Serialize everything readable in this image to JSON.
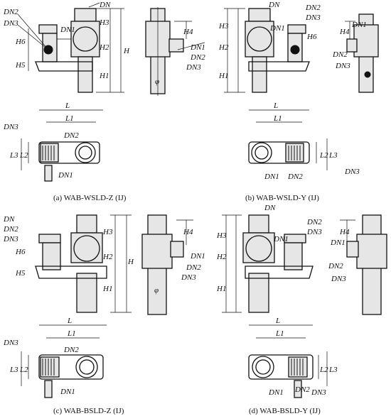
{
  "captions": {
    "a": "(a) WAB-WSLD-Z (IJ)",
    "b": "(b) WAB-WSLD-Y (IJ)",
    "c": "(c) WAB-BSLD-Z (IJ)",
    "d": "(d) WAB-BSLD-Y (IJ)"
  },
  "labels": {
    "dn": "DN",
    "dn1": "DN1",
    "dn2": "DN2",
    "dn3": "DN3",
    "h": "H",
    "h1": "H1",
    "h2": "H2",
    "h3": "H3",
    "h4": "H4",
    "h5": "H5",
    "h6": "H6",
    "l": "L",
    "l1": "L1",
    "l2": "L2",
    "l3": "L3",
    "phi": "φ"
  }
}
